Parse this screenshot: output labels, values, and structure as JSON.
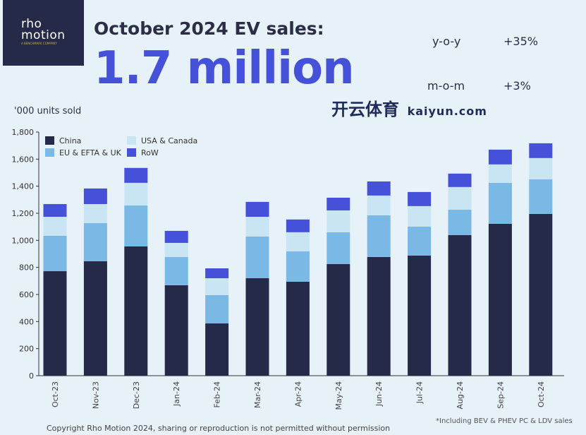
{
  "logo": {
    "line1": "rho",
    "line2": "motion",
    "tagline": "A BENCHMARK COMPANY"
  },
  "header": {
    "title": "October 2024 EV sales:",
    "headline": "1.7 million"
  },
  "stats": [
    {
      "label": "y-o-y",
      "value": "+35%"
    },
    {
      "label": "m-o-m",
      "value": "+3%"
    }
  ],
  "footer": {
    "copyright": "Copyright Rho Motion 2024, sharing or reproduction is not permitted without permission",
    "note": "*Including BEV & PHEV PC & LDV sales"
  },
  "watermark": {
    "text": "开云体育",
    "url": "kaiyun.com"
  },
  "chart_data": {
    "type": "bar",
    "stacked": true,
    "ylabel": "'000 units sold",
    "ylim": [
      0,
      1800
    ],
    "yticks": [
      "0",
      "200",
      "400",
      "600",
      "800",
      "1,000",
      "1,200",
      "1,400",
      "1,600",
      "1,800"
    ],
    "categories": [
      "Oct-23",
      "Nov-23",
      "Dec-23",
      "Jan-24",
      "Feb-24",
      "Mar-24",
      "Apr-24",
      "May-24",
      "Jun-24",
      "Jul-24",
      "Aug-24",
      "Sep-24",
      "Oct-24"
    ],
    "legend_position": "top-left",
    "series": [
      {
        "name": "China",
        "color": "#252a48",
        "values": [
          772,
          846,
          955,
          668,
          386,
          720,
          694,
          825,
          877,
          887,
          1039,
          1122,
          1195
        ]
      },
      {
        "name": "EU & EFTA & UK",
        "color": "#7ab8e6",
        "values": [
          262,
          281,
          303,
          209,
          209,
          308,
          225,
          235,
          308,
          214,
          188,
          303,
          256
        ]
      },
      {
        "name": "USA & Canada",
        "color": "#c9e4f2",
        "values": [
          140,
          141,
          167,
          104,
          125,
          146,
          141,
          161,
          146,
          152,
          167,
          136,
          157
        ]
      },
      {
        "name": "RoW",
        "color": "#4451d8",
        "values": [
          94,
          115,
          110,
          89,
          73,
          110,
          94,
          94,
          104,
          104,
          99,
          109,
          109
        ]
      }
    ]
  }
}
